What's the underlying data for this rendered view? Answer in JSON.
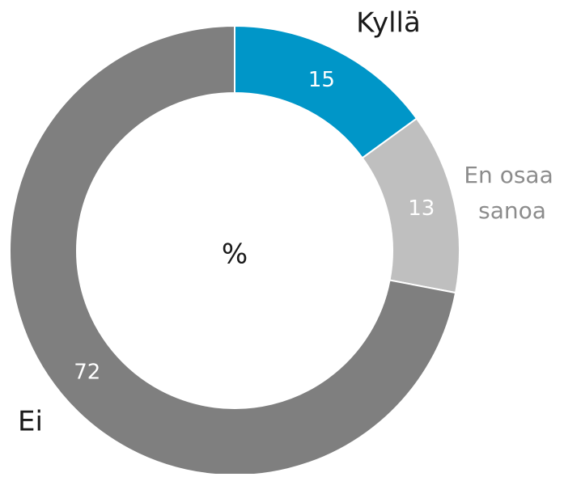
{
  "chart_data": {
    "type": "donut",
    "center_label": "%",
    "categories": [
      "Kyllä",
      "En osaa sanoa",
      "Ei"
    ],
    "values": [
      15,
      13,
      72
    ],
    "colors": [
      "#0096c8",
      "#bfbfbf",
      "#7f7f7f"
    ],
    "label_colors": [
      "#1a1a1a",
      "#8c8c8c",
      "#1a1a1a"
    ]
  }
}
